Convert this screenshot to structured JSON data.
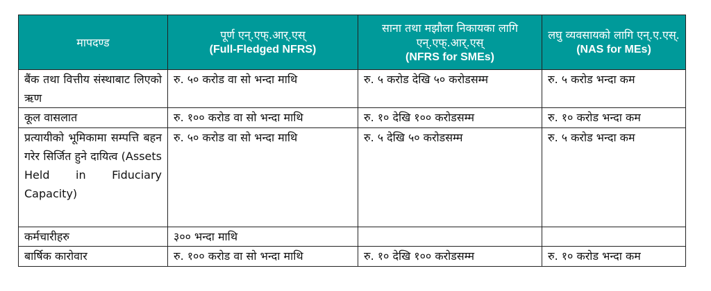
{
  "table": {
    "headers": [
      {
        "np": "मापदण्ड",
        "en": ""
      },
      {
        "np": "पूर्ण एन्.एफ्.आर्.एस्",
        "en": "(Full-Fledged NFRS)"
      },
      {
        "np": "साना तथा मझौला निकायका लागि एन्.एफ्.आर्.एस्",
        "en": "(NFRS for SMEs)"
      },
      {
        "np": "लघु व्यवसायको लागि एन्.ए.एस्.",
        "en": "(NAS for MEs)"
      }
    ],
    "rows": [
      [
        "बैंक तथा वित्तीय संस्थाबाट लिएको ऋण",
        "रु. ५० करोड वा सो भन्दा माथि",
        "रु. ५ करोड देखि ५० करोडसम्म",
        "रु. ५ करोड भन्दा कम"
      ],
      [
        "कूल वासलात",
        "रु. १०० करोड वा सो भन्दा माथि",
        "रु. १० देखि १०० करोडसम्म",
        "रु. १० करोड भन्दा कम"
      ],
      [
        "प्रत्यायीको भूमिकामा सम्पत्ति बहन गरेर सिर्जित हुने दायित्व (Assets Held in Fiduciary Capacity)",
        "रु. ५० करोड वा सो भन्दा माथि",
        "रु. ५ देखि ५० करोडसम्म",
        "रु. ५ करोड भन्दा कम"
      ],
      [
        "कर्मचारीहरु",
        "३०० भन्दा माथि",
        "",
        ""
      ],
      [
        "बार्षिक कारोवार",
        "रु. १०० करोड वा सो भन्दा माथि",
        "रु. १० देखि १०० करोडसम्म",
        "रु. १० करोड भन्दा कम"
      ]
    ]
  },
  "colors": {
    "header_bg": "#009a9a",
    "header_text": "#ffffff"
  }
}
